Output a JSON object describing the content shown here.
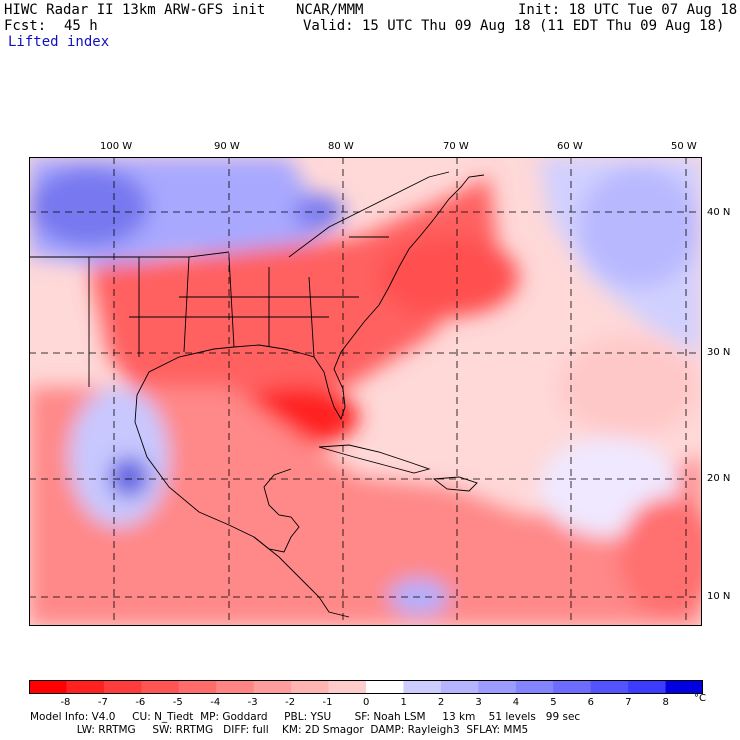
{
  "header": {
    "model_title": "HIWC Radar II 13km ARW-GFS init",
    "org": "NCAR/MMM",
    "init": "Init: 18 UTC Tue 07 Aug 18",
    "fcst_label": "Fcst:",
    "fcst_value": "45 h",
    "valid": "Valid: 15 UTC Thu 09 Aug 18 (11 EDT Thu 09 Aug 18)",
    "field": "Lifted index"
  },
  "map": {
    "lon_labels": [
      "100 W",
      "90 W",
      "80 W",
      "70 W",
      "60 W",
      "50 W"
    ],
    "lat_labels": [
      "40 N",
      "30 N",
      "20 N",
      "10 N"
    ],
    "colors": {
      "strong_neg": "#ff1010",
      "mid_neg": "#ff6060",
      "weak_neg": "#ffa0a0",
      "neutral": "#ffe8e8",
      "weak_pos": "#c8c8ff",
      "mid_pos": "#7c7cf0",
      "land_line": "#000000"
    }
  },
  "colorbar": {
    "ticks": [
      "-8",
      "-7",
      "-6",
      "-5",
      "-4",
      "-3",
      "-2",
      "-1",
      "0",
      "1",
      "2",
      "3",
      "4",
      "5",
      "6",
      "7",
      "8"
    ],
    "unit": "°C",
    "colors": [
      "#ff0000",
      "#ff2020",
      "#ff3c3c",
      "#ff5454",
      "#ff6c6c",
      "#ff8484",
      "#ff9c9c",
      "#ffb4b4",
      "#ffcccc",
      "#ffffff",
      "#ccccff",
      "#b4b4ff",
      "#9c9cff",
      "#8484ff",
      "#6c6cff",
      "#5454ff",
      "#3c3cff",
      "#0000e0"
    ]
  },
  "footer": {
    "line1": "Model Info: V4.0     CU: N_Tiedt  MP: Goddard     PBL: YSU       SF: Noah LSM     13 km    51 levels   99 sec",
    "line2": "              LW: RRTMG     SW: RRTMG   DIFF: full    KM: 2D Smagor  DAMP: Rayleigh3  SFLAY: MM5"
  }
}
